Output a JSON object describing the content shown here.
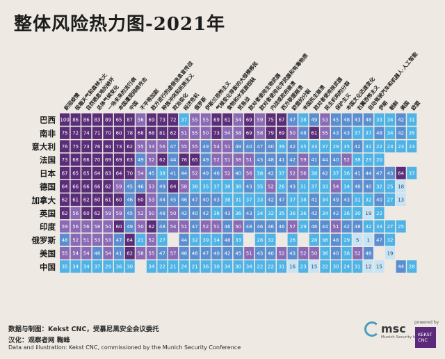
{
  "title": "整体风险热力图-2021年",
  "chart_data": {
    "type": "heatmap",
    "title": "整体风险热力图-2021年",
    "columns": [
      "新冠疫情",
      "极端天气和森林大火",
      "自然栖息地的破坏",
      "总体气候变化",
      "一场未来的流行病",
      "本国遭受网络攻击",
      "中国",
      "不平等加剧",
      "敌方进行的虚假信息宣传战",
      "种族冲突和民族主义",
      "政治极化",
      "经济危机",
      "俄罗斯",
      "伊斯兰恐怖主义",
      "气候变化导致的大规模移民",
      "食物和水资源短缺",
      "贸易战",
      "敌对者使用生物武器",
      "敌对者使用化学武器和有毒物质",
      "内战或政府崩溃",
      "西方联盟崩溃",
      "欧盟的分裂",
      "本国民主崩溃",
      "敌对者使用核武器",
      "民主机构的分裂",
      "保护主义",
      "本国文化迅速变化",
      "右翼恐怖主义",
      "自动驾驶汽车和机器人·人工智能",
      "伊朗",
      "朝鲜",
      "美国",
      "欧盟"
    ],
    "rows": [
      {
        "name": "巴西",
        "values": [
          100,
          86,
          86,
          83,
          89,
          65,
          87,
          56,
          69,
          73,
          72,
          37,
          55,
          55,
          69,
          61,
          54,
          69,
          59,
          75,
          67,
          47,
          38,
          49,
          53,
          45,
          48,
          43,
          48,
          33,
          34,
          42,
          31
        ]
      },
      {
        "name": "南非",
        "values": [
          75,
          72,
          74,
          71,
          70,
          60,
          78,
          68,
          68,
          81,
          62,
          51,
          55,
          50,
          73,
          54,
          58,
          69,
          58,
          79,
          69,
          50,
          48,
          61,
          55,
          43,
          43,
          37,
          37,
          48,
          34,
          42,
          35
        ]
      },
      {
        "name": "意大利",
        "values": [
          76,
          75,
          73,
          76,
          84,
          73,
          62,
          55,
          53,
          56,
          47,
          55,
          55,
          49,
          54,
          51,
          49,
          40,
          47,
          40,
          39,
          42,
          35,
          33,
          37,
          29,
          35,
          42,
          31,
          22,
          23,
          23,
          23
        ]
      },
      {
        "name": "法国",
        "values": [
          73,
          68,
          66,
          70,
          69,
          69,
          63,
          49,
          52,
          62,
          44,
          76,
          65,
          49,
          52,
          51,
          58,
          51,
          43,
          48,
          41,
          42,
          59,
          41,
          44,
          40,
          52,
          38,
          23,
          20,
          0,
          0,
          0
        ]
      },
      {
        "name": "日本",
        "values": [
          67,
          65,
          65,
          64,
          63,
          64,
          70,
          54,
          45,
          38,
          41,
          44,
          52,
          49,
          46,
          52,
          40,
          56,
          38,
          42,
          37,
          52,
          56,
          38,
          42,
          37,
          36,
          41,
          44,
          47,
          43,
          64,
          37
        ]
      },
      {
        "name": "德国",
        "values": [
          64,
          66,
          66,
          66,
          62,
          59,
          45,
          46,
          53,
          49,
          64,
          58,
          38,
          35,
          37,
          38,
          38,
          43,
          35,
          52,
          26,
          43,
          31,
          37,
          33,
          54,
          34,
          48,
          40,
          32,
          25,
          18,
          0
        ]
      },
      {
        "name": "加拿大",
        "values": [
          62,
          61,
          62,
          60,
          61,
          60,
          46,
          60,
          53,
          44,
          45,
          46,
          47,
          40,
          43,
          38,
          31,
          37,
          33,
          42,
          47,
          37,
          38,
          41,
          34,
          49,
          43,
          31,
          32,
          40,
          27,
          13,
          0
        ]
      },
      {
        "name": "英国",
        "values": [
          62,
          56,
          60,
          62,
          59,
          59,
          45,
          52,
          50,
          48,
          50,
          42,
          40,
          42,
          36,
          43,
          36,
          43,
          34,
          32,
          35,
          36,
          36,
          42,
          34,
          42,
          36,
          30,
          19,
          22,
          0,
          0,
          0
        ]
      },
      {
        "name": "印度",
        "values": [
          59,
          56,
          56,
          58,
          54,
          60,
          49,
          50,
          62,
          48,
          54,
          51,
          47,
          52,
          51,
          46,
          50,
          48,
          46,
          46,
          46,
          57,
          29,
          46,
          44,
          51,
          42,
          48,
          32,
          33,
          27,
          25,
          0
        ]
      },
      {
        "name": "俄罗斯",
        "values": [
          48,
          52,
          51,
          53,
          53,
          47,
          64,
          21,
          52,
          27,
          0,
          44,
          32,
          39,
          34,
          48,
          33,
          0,
          28,
          32,
          0,
          26,
          0,
          28,
          36,
          48,
          29,
          5,
          1,
          47,
          32,
          0,
          0
        ]
      },
      {
        "name": "美国",
        "values": [
          55,
          54,
          54,
          48,
          54,
          41,
          62,
          58,
          55,
          47,
          57,
          46,
          46,
          47,
          40,
          42,
          45,
          51,
          43,
          40,
          52,
          43,
          52,
          50,
          36,
          40,
          38,
          52,
          48,
          0,
          19,
          0,
          0
        ]
      },
      {
        "name": "中国",
        "values": [
          35,
          34,
          34,
          37,
          29,
          36,
          30,
          0,
          34,
          22,
          21,
          24,
          21,
          36,
          30,
          34,
          30,
          34,
          22,
          22,
          31,
          16,
          23,
          15,
          22,
          30,
          24,
          31,
          12,
          15,
          0,
          44,
          28
        ]
      }
    ]
  },
  "footer": {
    "credit_cn": "数据与制图：Kekst CNC，受慕尼黑安全会议委托",
    "translation": "汉化：观察者网 鞠峰",
    "credit_en": "Data and illustration: Kekst CNC, commissioned by the Munich Security Conference"
  },
  "logos": {
    "msc_name": "msc",
    "msc_subtitle": "Munich Security Index",
    "powered_by": "powered by",
    "kekst_name": "KEKST CNC"
  },
  "colors": {
    "background": "#eeeae3",
    "high": "#5a2d78",
    "mid_high": "#8a6ab5",
    "mid_low": "#5a8ed0",
    "low": "#4fb3e6",
    "very_low": "#c8e3f4"
  }
}
